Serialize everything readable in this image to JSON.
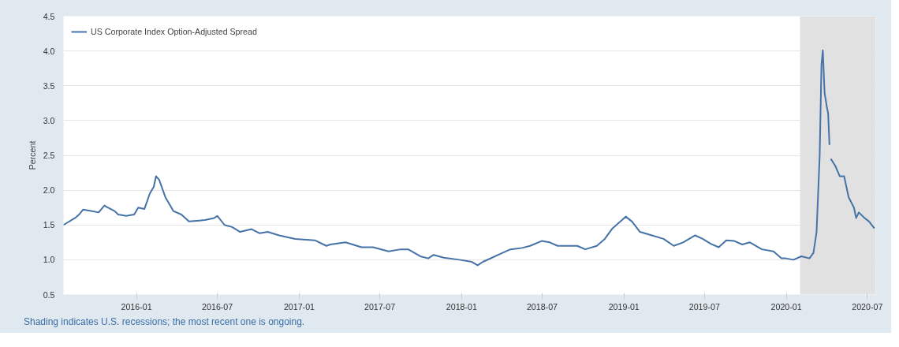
{
  "chart_data": {
    "type": "line",
    "ylabel": "Percent",
    "x": [
      "2015-07-21",
      "2015-08-16",
      "2015-08-25",
      "2015-09-03",
      "2015-09-21",
      "2015-10-08",
      "2015-10-21",
      "2015-10-26",
      "2015-11-13",
      "2015-11-21",
      "2015-12-09",
      "2015-12-27",
      "2016-01-05",
      "2016-01-19",
      "2016-01-31",
      "2016-02-09",
      "2016-02-14",
      "2016-02-21",
      "2016-03-06",
      "2016-03-24",
      "2016-04-11",
      "2016-04-28",
      "2016-06-03",
      "2016-06-24",
      "2016-07-01",
      "2016-07-17",
      "2016-08-03",
      "2016-08-21",
      "2016-09-16",
      "2016-10-04",
      "2016-10-22",
      "2016-11-17",
      "2016-12-23",
      "2017-02-05",
      "2017-03-03",
      "2017-03-12",
      "2017-04-15",
      "2017-05-21",
      "2017-06-16",
      "2017-07-21",
      "2017-08-17",
      "2017-09-03",
      "2017-09-30",
      "2017-10-18",
      "2017-10-30",
      "2017-11-22",
      "2017-12-27",
      "2018-01-24",
      "2018-02-06",
      "2018-02-18",
      "2018-04-03",
      "2018-04-21",
      "2018-05-17",
      "2018-06-04",
      "2018-06-30",
      "2018-07-18",
      "2018-08-05",
      "2018-08-22",
      "2018-09-18",
      "2018-10-06",
      "2018-11-01",
      "2018-11-19",
      "2018-12-06",
      "2018-12-24",
      "2019-01-05",
      "2019-01-19",
      "2019-02-06",
      "2019-03-05",
      "2019-03-31",
      "2019-04-23",
      "2019-05-14",
      "2019-06-10",
      "2019-06-27",
      "2019-07-15",
      "2019-08-02",
      "2019-08-19",
      "2019-09-06",
      "2019-09-24",
      "2019-10-11",
      "2019-11-07",
      "2019-12-03",
      "2019-12-21",
      "2019-12-31",
      "2020-01-17",
      "2020-02-04",
      "2020-02-22",
      "2020-03-02",
      "2020-03-09",
      "2020-03-16",
      "2020-03-20",
      "2020-03-23",
      "2020-03-27",
      "2020-04-01",
      "2020-04-04",
      "2020-04-07",
      "2020-04-08",
      "2020-04-10",
      "2020-04-20",
      "2020-04-30",
      "2020-05-10",
      "2020-05-20",
      "2020-06-01",
      "2020-06-06",
      "2020-06-12",
      "2020-06-25",
      "2020-07-05",
      "2020-07-17"
    ],
    "series": [
      {
        "name": "US Corporate Index Option-Adjusted Spread",
        "color": "#4572a7",
        "values": [
          1.5,
          1.6,
          1.65,
          1.72,
          1.7,
          1.68,
          1.78,
          1.76,
          1.7,
          1.65,
          1.63,
          1.65,
          1.75,
          1.73,
          1.95,
          2.05,
          2.2,
          2.15,
          1.9,
          1.7,
          1.65,
          1.55,
          1.57,
          1.6,
          1.63,
          1.5,
          1.47,
          1.4,
          1.44,
          1.38,
          1.4,
          1.35,
          1.3,
          1.28,
          1.2,
          1.22,
          1.25,
          1.18,
          1.18,
          1.12,
          1.15,
          1.15,
          1.05,
          1.02,
          1.07,
          1.03,
          1.0,
          0.97,
          0.92,
          0.97,
          1.1,
          1.15,
          1.17,
          1.2,
          1.27,
          1.25,
          1.2,
          1.2,
          1.2,
          1.15,
          1.2,
          1.3,
          1.45,
          1.55,
          1.62,
          1.55,
          1.4,
          1.35,
          1.3,
          1.2,
          1.25,
          1.35,
          1.3,
          1.23,
          1.18,
          1.28,
          1.27,
          1.22,
          1.25,
          1.15,
          1.12,
          1.02,
          1.02,
          1.0,
          1.05,
          1.02,
          1.1,
          1.4,
          2.5,
          3.8,
          4.01,
          3.4,
          3.2,
          3.1,
          2.65,
          null,
          2.45,
          2.35,
          2.2,
          2.2,
          1.9,
          1.75,
          1.6,
          1.68,
          1.6,
          1.55,
          1.45
        ]
      }
    ],
    "xlim": [
      "2015-07-21",
      "2020-07-20"
    ],
    "xticks": [
      "2016-01",
      "2016-07",
      "2017-01",
      "2017-07",
      "2018-01",
      "2018-07",
      "2019-01",
      "2019-07",
      "2020-01",
      "2020-07"
    ],
    "ylim": [
      0.5,
      4.5
    ],
    "yticks": [
      0.5,
      {
        "value": 1,
        "label": "1.0"
      },
      1.5,
      {
        "value": 2,
        "label": "2.0"
      },
      2.5,
      {
        "value": 3,
        "label": "3.0"
      },
      3.5,
      {
        "value": 4,
        "label": "4.0"
      },
      4.5
    ],
    "bands": [
      {
        "axis": "x",
        "from": "2020-02",
        "to": "2020-07-20",
        "color": "#e1e1e1"
      }
    ],
    "grid": "y",
    "legend": "top left",
    "line_style": "solid",
    "annotations": [
      "Shading indicates U.S. recessions; the most recent one is ongoing."
    ]
  }
}
